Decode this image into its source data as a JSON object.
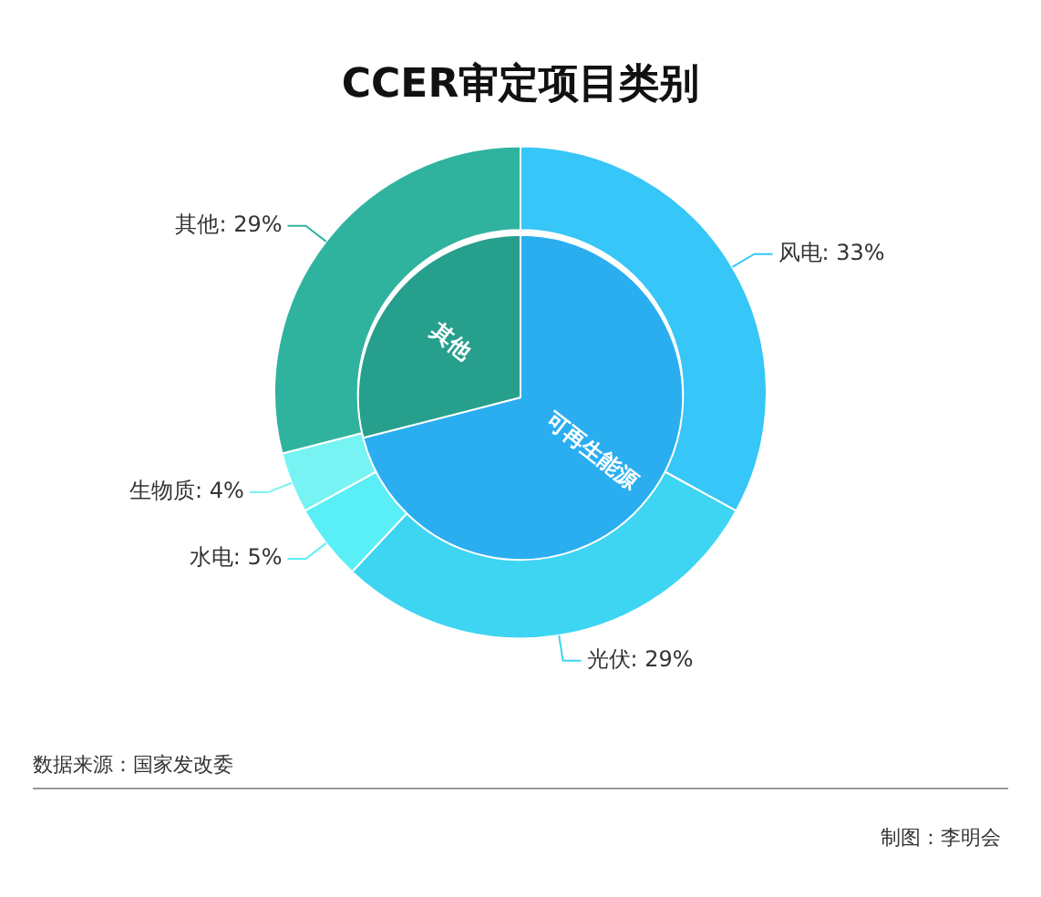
{
  "chart_data": [
    {
      "type": "donut",
      "title": "CCER审定项目类别",
      "categories": [
        "风电",
        "光伏",
        "水电",
        "生物质",
        "其他"
      ],
      "values": [
        33,
        29,
        5,
        4,
        29
      ],
      "colors": [
        "#36c6f7",
        "#3dd5f2",
        "#5aeef6",
        "#78f3f3",
        "#2fb39f"
      ],
      "value_labels": [
        "33%",
        "29%",
        "5%",
        "4%",
        "29%"
      ],
      "legend": false,
      "annotations": [
        "数据来源：国家发改委",
        "制图：李明会"
      ]
    },
    {
      "type": "pie",
      "categories": [
        "可再生能源",
        "其他"
      ],
      "values": [
        71,
        29
      ],
      "colors": [
        "#2aaef0",
        "#279f8d"
      ],
      "legend": false
    }
  ]
}
